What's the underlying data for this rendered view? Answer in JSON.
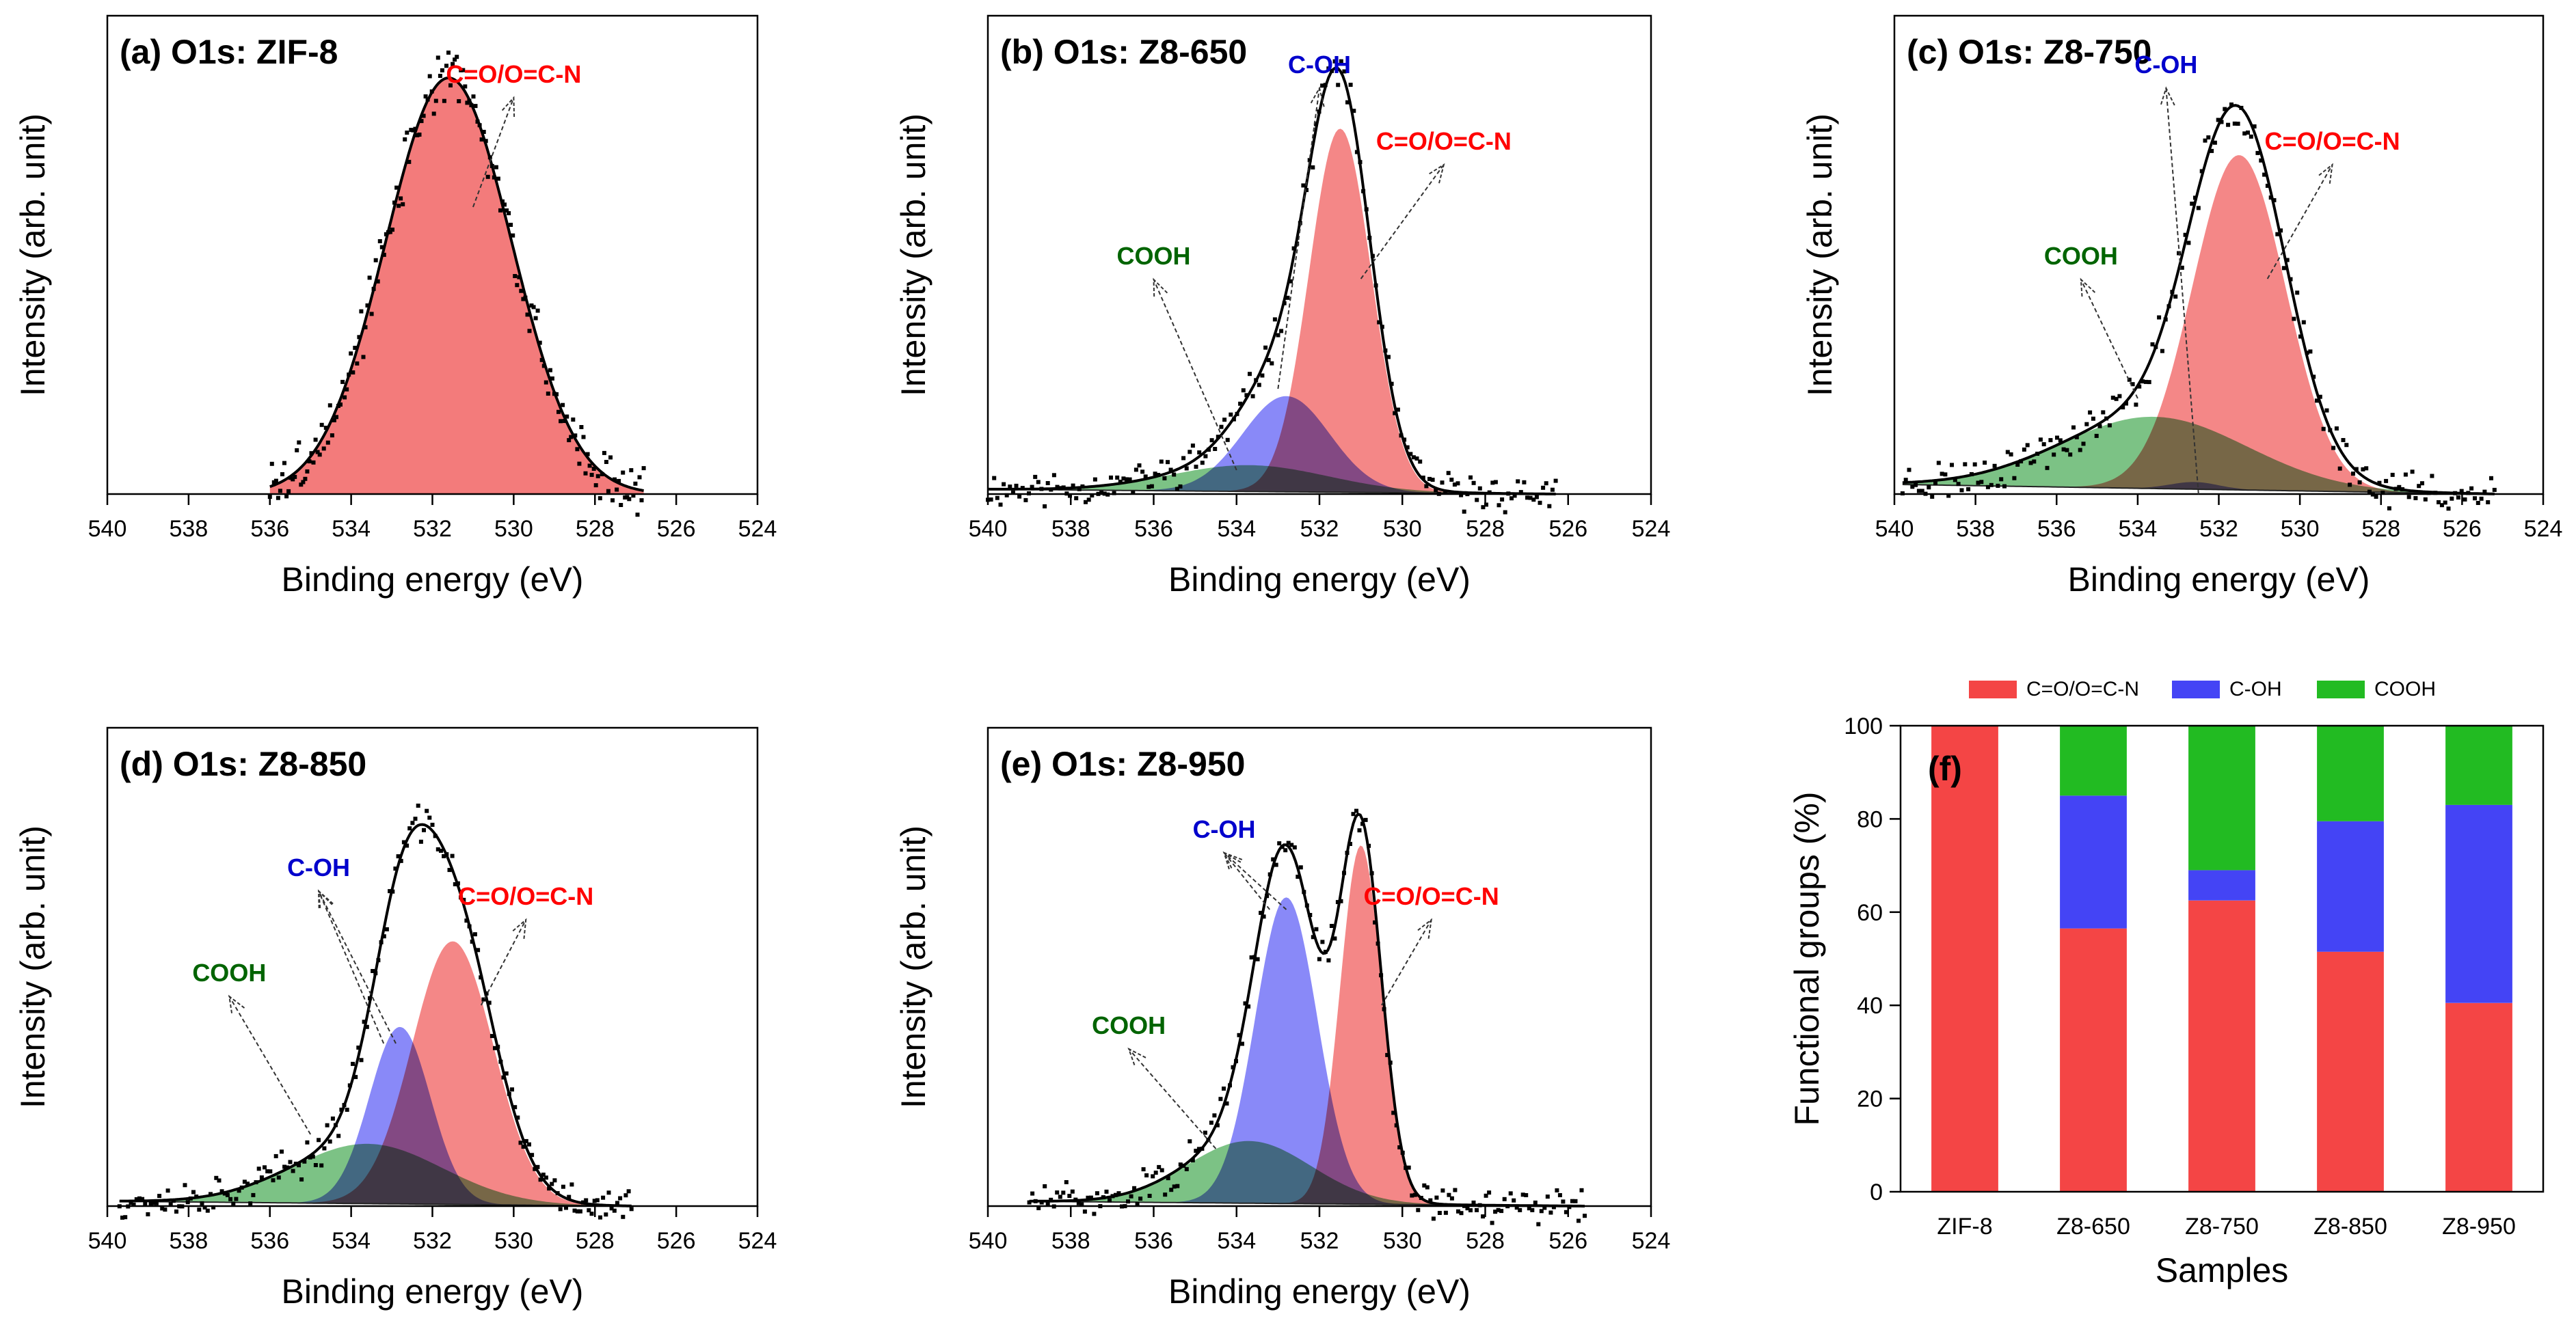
{
  "chart_data": [
    {
      "type": "area",
      "panel": "a",
      "title": "(a) O1s: ZIF-8",
      "xlabel": "Binding energy (eV)",
      "ylabel": "Intensity (arb. unit)",
      "xlim": [
        540,
        524
      ],
      "xticks": [
        "540",
        "538",
        "536",
        "534",
        "532",
        "530",
        "528",
        "526",
        "524"
      ],
      "ylim": [
        0,
        1.0
      ],
      "range": [
        536,
        526.8
      ],
      "background": {
        "left": 0.0,
        "right": 0.0
      },
      "components": [
        {
          "name": "C=O/O=C-N",
          "label": "C=O/O=C-N",
          "center": 531.6,
          "sigma": 1.55,
          "height": 0.87,
          "fill": "#f26d6d"
        }
      ],
      "annotations": [
        {
          "label": "C=O/O=C-N",
          "color": "#ff0000",
          "text_at": [
            530.0,
            0.86
          ],
          "arrows": [
            [
              531.0,
              0.6
            ]
          ]
        }
      ],
      "noise_seed": 3,
      "noise_amp": 0.045
    },
    {
      "type": "area",
      "panel": "b",
      "title": "(b) O1s: Z8-650",
      "xlabel": "Binding energy (eV)",
      "ylabel": "Intensity (arb. unit)",
      "xlim": [
        540,
        524
      ],
      "xticks": [
        "540",
        "538",
        "536",
        "534",
        "532",
        "530",
        "528",
        "526",
        "524"
      ],
      "ylim": [
        0,
        1.0
      ],
      "range": [
        540,
        526.3
      ],
      "background": {
        "left": 0.01,
        "right": 0.0
      },
      "components": [
        {
          "name": "COOH",
          "label": "COOH",
          "center": 533.7,
          "sigma": 1.9,
          "height": 0.055,
          "fill": "#5fb56a"
        },
        {
          "name": "C-OH",
          "label": "C-OH",
          "center": 532.8,
          "sigma": 1.05,
          "height": 0.2,
          "fill": "#6f6ff7"
        },
        {
          "name": "C=O/O=C-N",
          "label": "C=O/O=C-N",
          "center": 531.5,
          "sigma": 0.75,
          "height": 0.76,
          "fill": "#f26d6d"
        }
      ],
      "annotations": [
        {
          "label": "C-OH",
          "color": "#0000cc",
          "text_at": [
            532.0,
            0.88
          ],
          "arrows": [
            [
              533.0,
              0.22
            ]
          ]
        },
        {
          "label": "COOH",
          "color": "#006400",
          "text_at": [
            536.0,
            0.48
          ],
          "arrows": [
            [
              534.0,
              0.05
            ]
          ]
        },
        {
          "label": "C=O/O=C-N",
          "color": "#ff0000",
          "text_at": [
            529.0,
            0.72
          ],
          "arrows": [
            [
              531.0,
              0.45
            ]
          ]
        }
      ],
      "noise_seed": 11,
      "noise_amp": 0.03
    },
    {
      "type": "area",
      "panel": "c",
      "title": "(c) O1s: Z8-750",
      "xlabel": "Binding energy (eV)",
      "ylabel": "Intensity (arb. unit)",
      "xlim": [
        540,
        524
      ],
      "xticks": [
        "540",
        "538",
        "536",
        "534",
        "532",
        "530",
        "528",
        "526",
        "524"
      ],
      "ylim": [
        0,
        1.0
      ],
      "range": [
        539.8,
        525.2
      ],
      "background": {
        "left": 0.02,
        "right": 0.0
      },
      "components": [
        {
          "name": "COOH",
          "label": "COOH",
          "center": 533.6,
          "sigma": 2.3,
          "height": 0.15,
          "fill": "#5fb56a"
        },
        {
          "name": "C-OH",
          "label": "C-OH",
          "center": 532.6,
          "sigma": 0.6,
          "height": 0.015,
          "fill": "#6f6ff7"
        },
        {
          "name": "C=O/O=C-N",
          "label": "C=O/O=C-N",
          "center": 531.5,
          "sigma": 1.15,
          "height": 0.7,
          "fill": "#f26d6d"
        }
      ],
      "annotations": [
        {
          "label": "C-OH",
          "color": "#0000cc",
          "text_at": [
            533.3,
            0.88
          ],
          "arrows": [
            [
              532.5,
              0.0
            ]
          ]
        },
        {
          "label": "COOH",
          "color": "#006400",
          "text_at": [
            535.4,
            0.48
          ],
          "arrows": [
            [
              534.0,
              0.2
            ]
          ]
        },
        {
          "label": "C=O/O=C-N",
          "color": "#ff0000",
          "text_at": [
            529.2,
            0.72
          ],
          "arrows": [
            [
              530.8,
              0.45
            ]
          ]
        }
      ],
      "noise_seed": 23,
      "noise_amp": 0.035
    },
    {
      "type": "area",
      "panel": "d",
      "title": "(d) O1s: Z8-850",
      "xlabel": "Binding energy (eV)",
      "ylabel": "Intensity (arb. unit)",
      "xlim": [
        540,
        524
      ],
      "xticks": [
        "540",
        "538",
        "536",
        "534",
        "532",
        "530",
        "528",
        "526",
        "524"
      ],
      "ylim": [
        0,
        1.0
      ],
      "range": [
        539.7,
        527.1
      ],
      "background": {
        "left": 0.01,
        "right": 0.0
      },
      "components": [
        {
          "name": "COOH",
          "label": "COOH",
          "center": 533.6,
          "sigma": 1.85,
          "height": 0.125,
          "fill": "#5fb56a"
        },
        {
          "name": "C-OH",
          "label": "C-OH",
          "center": 532.8,
          "sigma": 0.75,
          "height": 0.37,
          "fill": "#6f6ff7"
        },
        {
          "name": "C=O/O=C-N",
          "label": "C=O/O=C-N",
          "center": 531.5,
          "sigma": 1.0,
          "height": 0.55,
          "fill": "#f26d6d"
        }
      ],
      "annotations": [
        {
          "label": "C-OH",
          "color": "#0000cc",
          "text_at": [
            534.8,
            0.69
          ],
          "arrows": [
            [
              533.2,
              0.34
            ],
            [
              532.9,
              0.34
            ]
          ]
        },
        {
          "label": "COOH",
          "color": "#006400",
          "text_at": [
            537.0,
            0.47
          ],
          "arrows": [
            [
              535.0,
              0.15
            ]
          ]
        },
        {
          "label": "C=O/O=C-N",
          "color": "#ff0000",
          "text_at": [
            529.7,
            0.63
          ],
          "arrows": [
            [
              530.8,
              0.42
            ]
          ]
        }
      ],
      "noise_seed": 37,
      "noise_amp": 0.03
    },
    {
      "type": "area",
      "panel": "e",
      "title": "(e) O1s: Z8-950",
      "xlabel": "Binding energy (eV)",
      "ylabel": "Intensity (arb. unit)",
      "xlim": [
        540,
        524
      ],
      "xticks": [
        "540",
        "538",
        "536",
        "534",
        "532",
        "530",
        "528",
        "526",
        "524"
      ],
      "ylim": [
        0,
        1.0
      ],
      "range": [
        539,
        525.6
      ],
      "background": {
        "left": 0.01,
        "right": 0.0
      },
      "components": [
        {
          "name": "COOH",
          "label": "COOH",
          "center": 533.7,
          "sigma": 1.5,
          "height": 0.13,
          "fill": "#5fb56a"
        },
        {
          "name": "C-OH",
          "label": "C-OH",
          "center": 532.8,
          "sigma": 0.75,
          "height": 0.64,
          "fill": "#6f6ff7"
        },
        {
          "name": "C=O/O=C-N",
          "label": "C=O/O=C-N",
          "center": 531.0,
          "sigma": 0.5,
          "height": 0.75,
          "fill": "#f26d6d"
        }
      ],
      "annotations": [
        {
          "label": "C-OH",
          "color": "#0000cc",
          "text_at": [
            534.3,
            0.77
          ],
          "arrows": [
            [
              532.8,
              0.62
            ],
            [
              533.2,
              0.62
            ]
          ]
        },
        {
          "label": "COOH",
          "color": "#006400",
          "text_at": [
            536.6,
            0.36
          ],
          "arrows": [
            [
              534.5,
              0.12
            ]
          ]
        },
        {
          "label": "C=O/O=C-N",
          "color": "#ff0000",
          "text_at": [
            529.3,
            0.63
          ],
          "arrows": [
            [
              530.5,
              0.42
            ]
          ]
        }
      ],
      "noise_seed": 51,
      "noise_amp": 0.03
    },
    {
      "type": "bar",
      "stacked": true,
      "panel": "f",
      "title": "(f)",
      "xlabel": "Samples",
      "ylabel": "Functional groups (%)",
      "ylim": [
        0,
        100
      ],
      "yticks": [
        "0",
        "20",
        "40",
        "60",
        "80",
        "100"
      ],
      "categories": [
        "ZIF-8",
        "Z8-650",
        "Z8-750",
        "Z8-850",
        "Z8-950"
      ],
      "series": [
        {
          "name": "C=O/O=C-N",
          "color": "#f44545",
          "values": [
            100,
            56.5,
            62.5,
            51.5,
            40.5
          ]
        },
        {
          "name": "C-OH",
          "color": "#4444f5",
          "values": [
            0,
            28.5,
            6.5,
            28.0,
            42.5
          ]
        },
        {
          "name": "COOH",
          "color": "#22bb22",
          "values": [
            0,
            15.0,
            31.0,
            20.5,
            17.0
          ]
        }
      ],
      "legend": "top"
    }
  ]
}
